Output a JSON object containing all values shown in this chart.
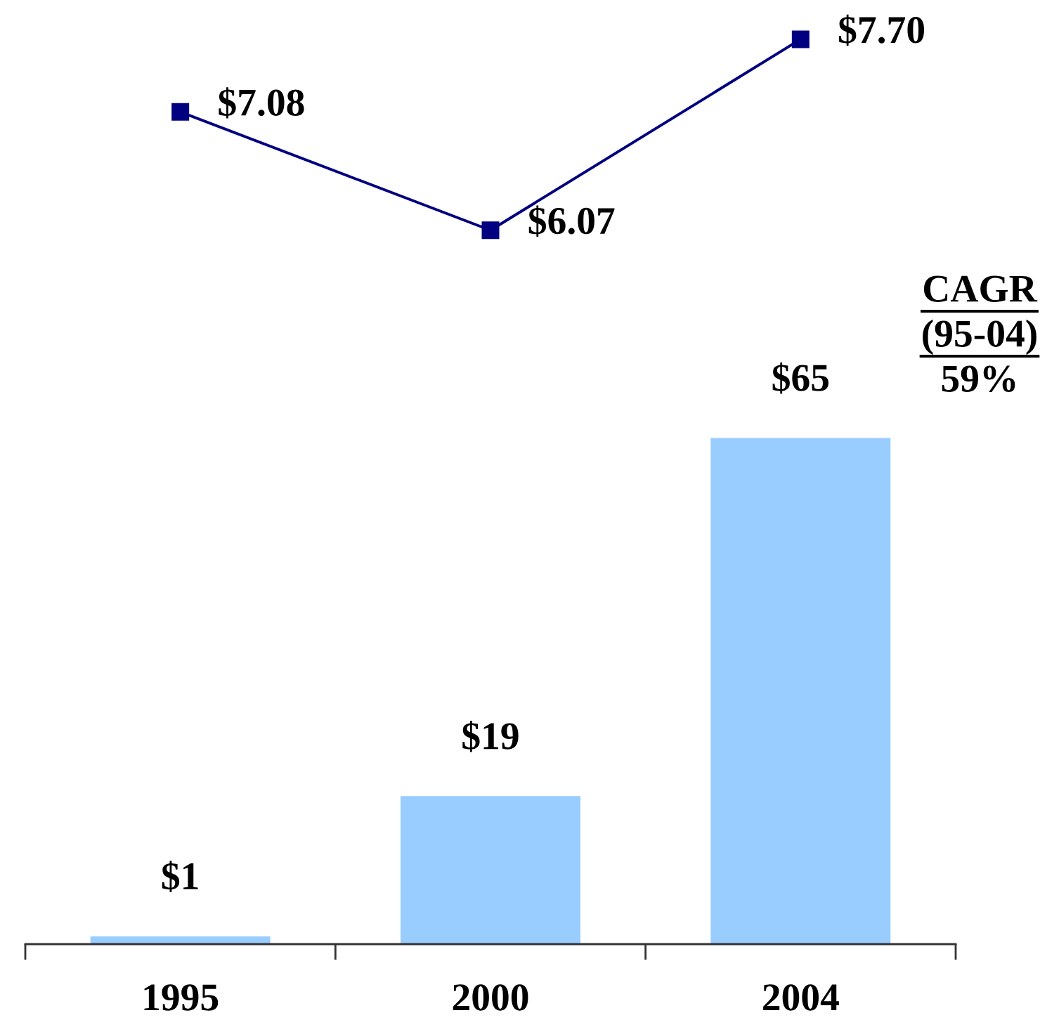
{
  "chart_data": [
    {
      "type": "line",
      "categories": [
        "1995",
        "2000",
        "2004"
      ],
      "values": [
        7.08,
        6.07,
        7.7
      ],
      "value_labels": [
        "$7.08",
        "$6.07",
        "$7.70"
      ],
      "color": "#000080",
      "marker": "square",
      "line_style": "solid",
      "tick_labels": false
    },
    {
      "type": "bar",
      "categories": [
        "1995",
        "2000",
        "2004"
      ],
      "values": [
        1,
        19,
        65
      ],
      "value_labels": [
        "$1",
        "$19",
        "$65"
      ],
      "color": "#99ccff",
      "tick_labels": "x",
      "annotations": [
        "CAGR",
        "(95-04)",
        "59%"
      ]
    }
  ]
}
